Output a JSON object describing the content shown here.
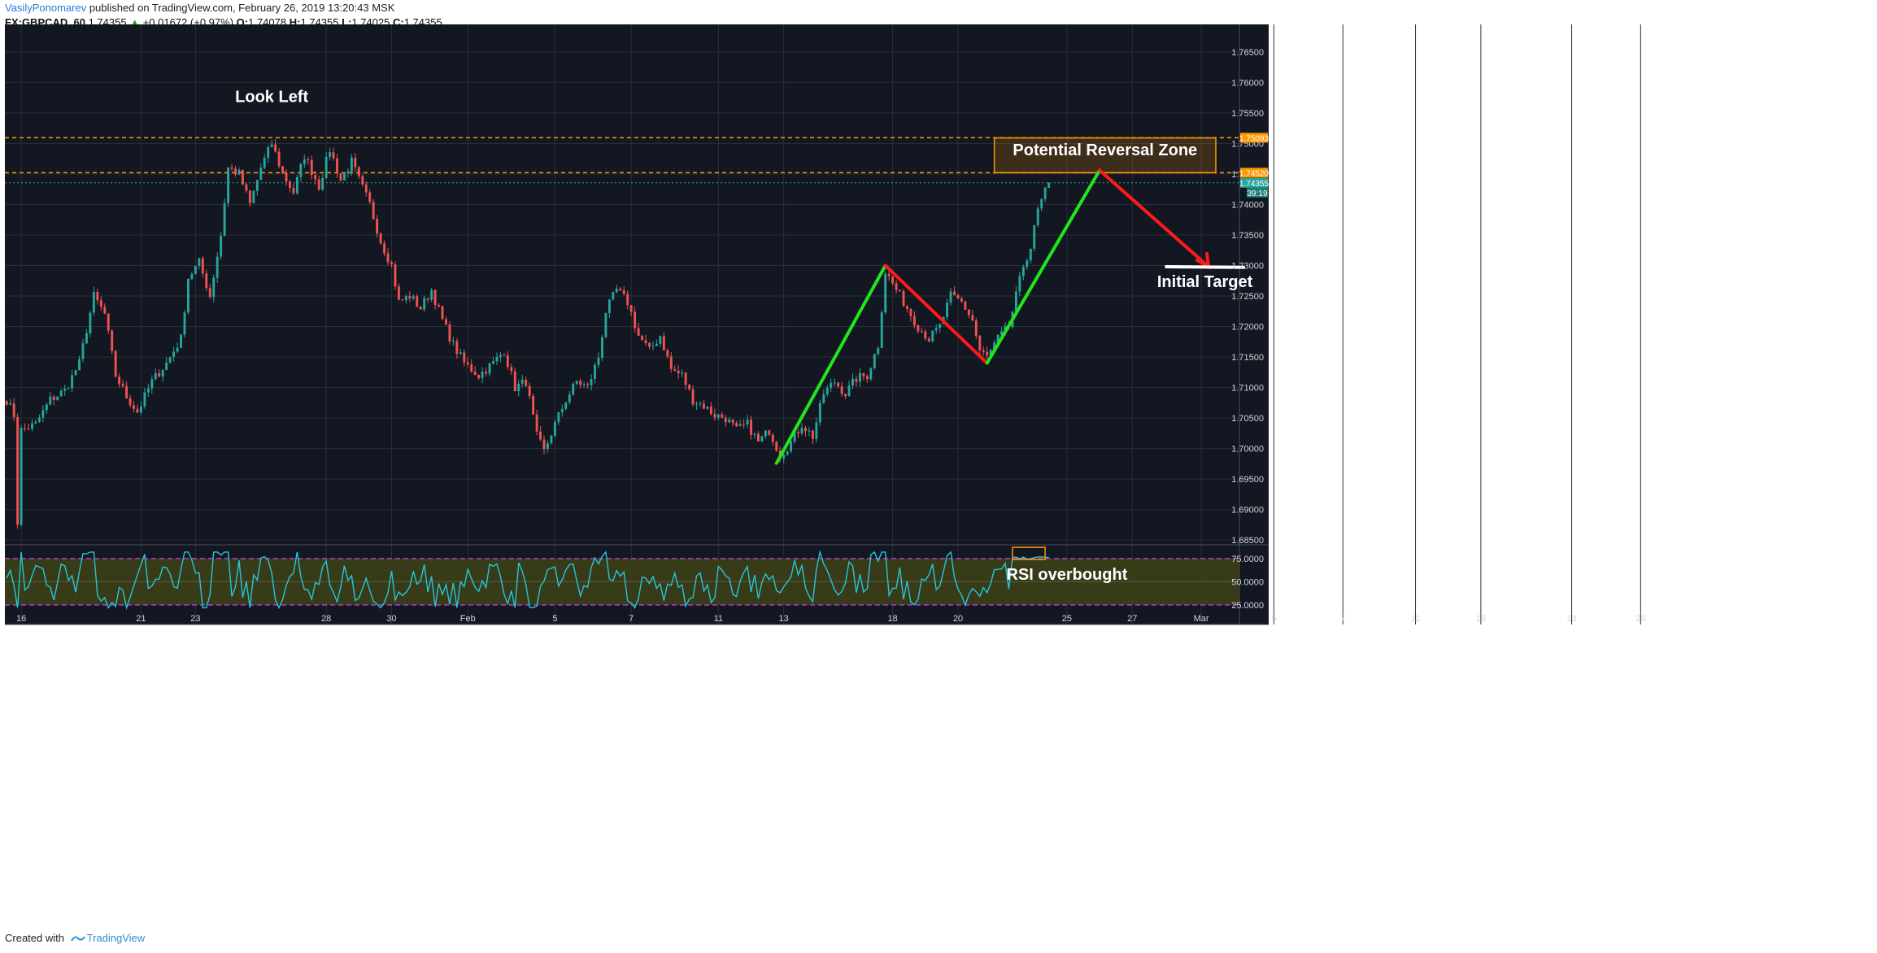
{
  "header": {
    "author": "VasilyPonomarev",
    "published": "published on TradingView.com, February 26, 2019 13:20:43 MSK",
    "symbol": "FX:GBPCAD, 60",
    "last": "1.74355",
    "change_arrow": "▲",
    "change": "+0.01672 (+0.97%)",
    "o_label": "O:",
    "o": "1.74078",
    "h_label": "H:",
    "h": "1.74355",
    "l_label": "L:",
    "l": "1.74025",
    "c_label": "C:",
    "c": "1.74355"
  },
  "footer": {
    "created_with": "Created with",
    "brand": "TradingView",
    "logo_icon": "tradingview-logo-icon"
  },
  "colors": {
    "background": "#131722",
    "grid": "#2a2e39",
    "up": "#26a69a",
    "down": "#ef5350",
    "level": "#ff9800",
    "green_leg": "#22e51e",
    "red_leg": "#ff1a1a",
    "rsi_line": "#26c6da",
    "rsi_band": "#3c3f17",
    "rsi_bound": "#b23ccf"
  },
  "chart_data": {
    "type": "candlestick",
    "price_axis": {
      "ticks": [
        "1.76500",
        "1.76000",
        "1.75500",
        "1.75000",
        "1.74500",
        "1.74000",
        "1.73500",
        "1.73000",
        "1.72500",
        "1.72000",
        "1.71500",
        "1.71000",
        "1.70500",
        "1.70000",
        "1.69500",
        "1.69000",
        "1.68500"
      ],
      "range": [
        1.6845,
        1.7695
      ],
      "badges": {
        "resistance_upper": "1.75093",
        "resistance_lower": "1.74520",
        "last_price": "1.74355",
        "countdown": "39:19"
      }
    },
    "time_axis": {
      "labels": [
        "16",
        "21",
        "23",
        "28",
        "30",
        "Feb",
        "5",
        "7",
        "11",
        "13",
        "18",
        "20",
        "25",
        "27",
        "Mar",
        "5",
        "7",
        "11",
        "13",
        "18",
        "20"
      ],
      "label_index": [
        4,
        37,
        52,
        88,
        106,
        127,
        151,
        172,
        196,
        214,
        244,
        262,
        292,
        310,
        329,
        349,
        368,
        388,
        406,
        431,
        450
      ]
    },
    "key_levels": [
      1.75093,
      1.7452
    ],
    "annotations": {
      "look_left": "Look Left",
      "prz": "Potential Reversal Zone",
      "initial_target": "Initial Target",
      "rsi_overbought": "RSI overbought"
    },
    "pattern_legs": [
      {
        "from": [
          212,
          1.6976
        ],
        "to": [
          242,
          1.73
        ],
        "color": "green"
      },
      {
        "from": [
          242,
          1.73
        ],
        "to": [
          270,
          1.714
        ],
        "color": "red"
      },
      {
        "from": [
          270,
          1.714
        ],
        "to": [
          301,
          1.7456
        ],
        "color": "green"
      },
      {
        "from": [
          301,
          1.7456
        ],
        "to": [
          331,
          1.7298
        ],
        "color": "red"
      }
    ],
    "target_line": {
      "from": [
        319,
        1.7298
      ],
      "to": [
        341,
        1.7297
      ]
    },
    "prz_zone": {
      "x": [
        272,
        333
      ],
      "y": [
        1.7452,
        1.7509
      ]
    },
    "price_waypoints": [
      [
        0,
        1.708
      ],
      [
        2,
        1.7055
      ],
      [
        3,
        1.688
      ],
      [
        4,
        1.703
      ],
      [
        8,
        1.704
      ],
      [
        12,
        1.708
      ],
      [
        16,
        1.7095
      ],
      [
        20,
        1.714
      ],
      [
        24,
        1.725
      ],
      [
        27,
        1.722
      ],
      [
        30,
        1.712
      ],
      [
        33,
        1.7085
      ],
      [
        36,
        1.706
      ],
      [
        40,
        1.711
      ],
      [
        44,
        1.714
      ],
      [
        48,
        1.718
      ],
      [
        50,
        1.728
      ],
      [
        53,
        1.7305
      ],
      [
        56,
        1.725
      ],
      [
        59,
        1.735
      ],
      [
        61,
        1.746
      ],
      [
        64,
        1.745
      ],
      [
        67,
        1.74
      ],
      [
        70,
        1.746
      ],
      [
        73,
        1.75
      ],
      [
        76,
        1.745
      ],
      [
        79,
        1.742
      ],
      [
        82,
        1.748
      ],
      [
        86,
        1.743
      ],
      [
        89,
        1.749
      ],
      [
        92,
        1.744
      ],
      [
        95,
        1.747
      ],
      [
        97,
        1.744
      ],
      [
        100,
        1.74
      ],
      [
        103,
        1.734
      ],
      [
        106,
        1.73
      ],
      [
        108,
        1.724
      ],
      [
        111,
        1.725
      ],
      [
        114,
        1.723
      ],
      [
        117,
        1.726
      ],
      [
        120,
        1.721
      ],
      [
        123,
        1.717
      ],
      [
        126,
        1.714
      ],
      [
        130,
        1.712
      ],
      [
        134,
        1.714
      ],
      [
        137,
        1.716
      ],
      [
        140,
        1.71
      ],
      [
        143,
        1.711
      ],
      [
        146,
        1.702
      ],
      [
        148,
        1.6995
      ],
      [
        151,
        1.704
      ],
      [
        154,
        1.708
      ],
      [
        157,
        1.711
      ],
      [
        160,
        1.71
      ],
      [
        163,
        1.715
      ],
      [
        165,
        1.7225
      ],
      [
        168,
        1.726
      ],
      [
        171,
        1.724
      ],
      [
        174,
        1.7185
      ],
      [
        177,
        1.716
      ],
      [
        180,
        1.7185
      ],
      [
        183,
        1.713
      ],
      [
        186,
        1.712
      ],
      [
        189,
        1.708
      ],
      [
        192,
        1.707
      ],
      [
        195,
        1.7055
      ],
      [
        198,
        1.705
      ],
      [
        201,
        1.703
      ],
      [
        204,
        1.704
      ],
      [
        207,
        1.701
      ],
      [
        210,
        1.703
      ],
      [
        213,
        1.699
      ],
      [
        216,
        1.701
      ],
      [
        219,
        1.704
      ],
      [
        222,
        1.702
      ],
      [
        225,
        1.709
      ],
      [
        228,
        1.711
      ],
      [
        231,
        1.709
      ],
      [
        234,
        1.7115
      ],
      [
        237,
        1.712
      ],
      [
        240,
        1.717
      ],
      [
        242,
        1.729
      ],
      [
        245,
        1.726
      ],
      [
        248,
        1.723
      ],
      [
        251,
        1.72
      ],
      [
        254,
        1.718
      ],
      [
        257,
        1.72
      ],
      [
        260,
        1.725
      ],
      [
        263,
        1.724
      ],
      [
        266,
        1.721
      ],
      [
        268,
        1.716
      ],
      [
        270,
        1.715
      ],
      [
        273,
        1.718
      ],
      [
        276,
        1.72
      ],
      [
        278,
        1.725
      ],
      [
        280,
        1.73
      ],
      [
        282,
        1.733
      ],
      [
        284,
        1.739
      ],
      [
        286,
        1.742
      ],
      [
        287,
        1.74355
      ]
    ],
    "rsi": {
      "levels": [
        75,
        25
      ],
      "ticks": [
        "75.0000",
        "50.0000",
        "25.0000"
      ],
      "range": [
        18,
        88
      ],
      "overbought_box_x": [
        277,
        286
      ]
    }
  }
}
